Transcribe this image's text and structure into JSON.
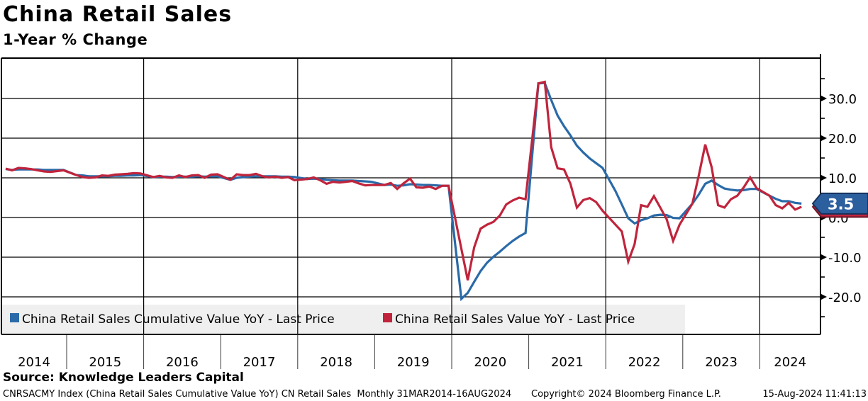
{
  "header": {
    "title": "China Retail Sales",
    "subtitle": "1-Year % Change"
  },
  "footer": {
    "source": "Source: Knowledge Leaders Capital",
    "ticker_line": "CNRSACMY Index (China Retail Sales Cumulative Value YoY) CN Retail Sales  Monthly 31MAR2014-16AUG2024",
    "copyright": "Copyright© 2024 Bloomberg Finance L.P.",
    "timestamp": "15-Aug-2024 11:41:13"
  },
  "legend": {
    "background": "#efefef"
  },
  "chart_data": {
    "type": "line",
    "title": "China Retail Sales",
    "subtitle": "1-Year % Change",
    "ylabel": "1-Year % Change",
    "ylim": [
      -29,
      40
    ],
    "grid": true,
    "legend_position": "bottom-left-inside",
    "x_axis": {
      "years": [
        2014,
        2015,
        2016,
        2017,
        2018,
        2019,
        2020,
        2021,
        2022,
        2023,
        2024
      ],
      "gridline_years": [
        2016,
        2018,
        2020,
        2022,
        2024
      ],
      "range_label": "31MAR2014-16AUG2024",
      "frequency": "Monthly"
    },
    "y_axis": {
      "major_ticks": [
        30,
        20,
        10,
        0,
        -10,
        -20
      ],
      "tick_labels": [
        "30.0",
        "20.0",
        "10.0",
        "0.0",
        "-10.0",
        "-20.0"
      ],
      "minor_ticks": [
        35,
        25,
        15,
        5,
        -5,
        -15,
        -25
      ]
    },
    "series": [
      {
        "name": "China Retail Sales Cumulative Value YoY - Last Price",
        "color": "#2a6aa8",
        "last_value": 3.5,
        "points": [
          [
            2014,
            3,
            12.2
          ],
          [
            2014,
            4,
            12.0
          ],
          [
            2014,
            5,
            12.1
          ],
          [
            2014,
            6,
            12.1
          ],
          [
            2014,
            7,
            12.1
          ],
          [
            2014,
            8,
            12.1
          ],
          [
            2014,
            9,
            12.0
          ],
          [
            2014,
            10,
            12.0
          ],
          [
            2014,
            11,
            12.0
          ],
          [
            2014,
            12,
            12.0
          ],
          [
            2015,
            2,
            10.7
          ],
          [
            2015,
            3,
            10.6
          ],
          [
            2015,
            4,
            10.4
          ],
          [
            2015,
            5,
            10.4
          ],
          [
            2015,
            6,
            10.4
          ],
          [
            2015,
            7,
            10.4
          ],
          [
            2015,
            8,
            10.5
          ],
          [
            2015,
            9,
            10.5
          ],
          [
            2015,
            10,
            10.6
          ],
          [
            2015,
            11,
            10.6
          ],
          [
            2015,
            12,
            10.7
          ],
          [
            2016,
            2,
            10.2
          ],
          [
            2016,
            3,
            10.3
          ],
          [
            2016,
            4,
            10.3
          ],
          [
            2016,
            5,
            10.2
          ],
          [
            2016,
            6,
            10.3
          ],
          [
            2016,
            7,
            10.3
          ],
          [
            2016,
            8,
            10.3
          ],
          [
            2016,
            9,
            10.4
          ],
          [
            2016,
            10,
            10.3
          ],
          [
            2016,
            11,
            10.4
          ],
          [
            2016,
            12,
            10.4
          ],
          [
            2017,
            2,
            9.5
          ],
          [
            2017,
            3,
            10.0
          ],
          [
            2017,
            4,
            10.2
          ],
          [
            2017,
            5,
            10.3
          ],
          [
            2017,
            6,
            10.4
          ],
          [
            2017,
            7,
            10.4
          ],
          [
            2017,
            8,
            10.4
          ],
          [
            2017,
            9,
            10.4
          ],
          [
            2017,
            10,
            10.3
          ],
          [
            2017,
            11,
            10.3
          ],
          [
            2017,
            12,
            10.2
          ],
          [
            2018,
            2,
            9.7
          ],
          [
            2018,
            3,
            9.8
          ],
          [
            2018,
            4,
            9.7
          ],
          [
            2018,
            5,
            9.5
          ],
          [
            2018,
            6,
            9.4
          ],
          [
            2018,
            7,
            9.3
          ],
          [
            2018,
            8,
            9.3
          ],
          [
            2018,
            9,
            9.3
          ],
          [
            2018,
            10,
            9.2
          ],
          [
            2018,
            11,
            9.1
          ],
          [
            2018,
            12,
            9.0
          ],
          [
            2019,
            2,
            8.2
          ],
          [
            2019,
            3,
            8.3
          ],
          [
            2019,
            4,
            8.0
          ],
          [
            2019,
            5,
            8.1
          ],
          [
            2019,
            6,
            8.4
          ],
          [
            2019,
            7,
            8.3
          ],
          [
            2019,
            8,
            8.2
          ],
          [
            2019,
            9,
            8.2
          ],
          [
            2019,
            10,
            8.1
          ],
          [
            2019,
            11,
            8.0
          ],
          [
            2019,
            12,
            8.0
          ],
          [
            2020,
            2,
            -20.5
          ],
          [
            2020,
            3,
            -19.0
          ],
          [
            2020,
            4,
            -16.2
          ],
          [
            2020,
            5,
            -13.5
          ],
          [
            2020,
            6,
            -11.4
          ],
          [
            2020,
            7,
            -9.9
          ],
          [
            2020,
            8,
            -8.6
          ],
          [
            2020,
            9,
            -7.2
          ],
          [
            2020,
            10,
            -5.9
          ],
          [
            2020,
            11,
            -4.8
          ],
          [
            2020,
            12,
            -3.9
          ],
          [
            2021,
            2,
            33.8
          ],
          [
            2021,
            3,
            33.9
          ],
          [
            2021,
            4,
            29.6
          ],
          [
            2021,
            5,
            25.7
          ],
          [
            2021,
            6,
            23.0
          ],
          [
            2021,
            7,
            20.7
          ],
          [
            2021,
            8,
            18.1
          ],
          [
            2021,
            9,
            16.4
          ],
          [
            2021,
            10,
            14.9
          ],
          [
            2021,
            11,
            13.7
          ],
          [
            2021,
            12,
            12.5
          ],
          [
            2022,
            2,
            6.7
          ],
          [
            2022,
            3,
            3.3
          ],
          [
            2022,
            4,
            -0.2
          ],
          [
            2022,
            5,
            -1.5
          ],
          [
            2022,
            6,
            -0.7
          ],
          [
            2022,
            7,
            -0.2
          ],
          [
            2022,
            8,
            0.5
          ],
          [
            2022,
            9,
            0.7
          ],
          [
            2022,
            10,
            0.6
          ],
          [
            2022,
            11,
            -0.1
          ],
          [
            2022,
            12,
            -0.2
          ],
          [
            2023,
            2,
            3.5
          ],
          [
            2023,
            3,
            5.8
          ],
          [
            2023,
            4,
            8.5
          ],
          [
            2023,
            5,
            9.3
          ],
          [
            2023,
            6,
            8.2
          ],
          [
            2023,
            7,
            7.3
          ],
          [
            2023,
            8,
            7.0
          ],
          [
            2023,
            9,
            6.8
          ],
          [
            2023,
            10,
            6.9
          ],
          [
            2023,
            11,
            7.2
          ],
          [
            2023,
            12,
            7.2
          ],
          [
            2024,
            2,
            5.5
          ],
          [
            2024,
            3,
            4.7
          ],
          [
            2024,
            4,
            4.1
          ],
          [
            2024,
            5,
            4.1
          ],
          [
            2024,
            6,
            3.7
          ],
          [
            2024,
            7,
            3.5
          ]
        ]
      },
      {
        "name": "China Retail Sales Value YoY - Last Price",
        "color": "#c0243c",
        "last_value": 2.7,
        "points": [
          [
            2014,
            3,
            12.3
          ],
          [
            2014,
            4,
            11.9
          ],
          [
            2014,
            5,
            12.5
          ],
          [
            2014,
            6,
            12.4
          ],
          [
            2014,
            7,
            12.2
          ],
          [
            2014,
            8,
            11.9
          ],
          [
            2014,
            9,
            11.6
          ],
          [
            2014,
            10,
            11.5
          ],
          [
            2014,
            11,
            11.7
          ],
          [
            2014,
            12,
            11.9
          ],
          [
            2015,
            2,
            10.7
          ],
          [
            2015,
            3,
            10.2
          ],
          [
            2015,
            4,
            10.0
          ],
          [
            2015,
            5,
            10.1
          ],
          [
            2015,
            6,
            10.6
          ],
          [
            2015,
            7,
            10.5
          ],
          [
            2015,
            8,
            10.8
          ],
          [
            2015,
            9,
            10.9
          ],
          [
            2015,
            10,
            11.0
          ],
          [
            2015,
            11,
            11.2
          ],
          [
            2015,
            12,
            11.1
          ],
          [
            2016,
            2,
            10.2
          ],
          [
            2016,
            3,
            10.5
          ],
          [
            2016,
            4,
            10.1
          ],
          [
            2016,
            5,
            10.0
          ],
          [
            2016,
            6,
            10.6
          ],
          [
            2016,
            7,
            10.2
          ],
          [
            2016,
            8,
            10.6
          ],
          [
            2016,
            9,
            10.7
          ],
          [
            2016,
            10,
            10.0
          ],
          [
            2016,
            11,
            10.8
          ],
          [
            2016,
            12,
            10.9
          ],
          [
            2017,
            2,
            9.5
          ],
          [
            2017,
            3,
            10.9
          ],
          [
            2017,
            4,
            10.7
          ],
          [
            2017,
            5,
            10.7
          ],
          [
            2017,
            6,
            11.0
          ],
          [
            2017,
            7,
            10.4
          ],
          [
            2017,
            8,
            10.1
          ],
          [
            2017,
            9,
            10.3
          ],
          [
            2017,
            10,
            10.0
          ],
          [
            2017,
            11,
            10.2
          ],
          [
            2017,
            12,
            9.4
          ],
          [
            2018,
            2,
            9.7
          ],
          [
            2018,
            3,
            10.1
          ],
          [
            2018,
            4,
            9.4
          ],
          [
            2018,
            5,
            8.5
          ],
          [
            2018,
            6,
            9.0
          ],
          [
            2018,
            7,
            8.8
          ],
          [
            2018,
            8,
            9.0
          ],
          [
            2018,
            9,
            9.2
          ],
          [
            2018,
            10,
            8.6
          ],
          [
            2018,
            11,
            8.1
          ],
          [
            2018,
            12,
            8.2
          ],
          [
            2019,
            2,
            8.2
          ],
          [
            2019,
            3,
            8.7
          ],
          [
            2019,
            4,
            7.2
          ],
          [
            2019,
            5,
            8.6
          ],
          [
            2019,
            6,
            9.8
          ],
          [
            2019,
            7,
            7.6
          ],
          [
            2019,
            8,
            7.5
          ],
          [
            2019,
            9,
            7.8
          ],
          [
            2019,
            10,
            7.2
          ],
          [
            2019,
            11,
            8.0
          ],
          [
            2019,
            12,
            8.0
          ],
          [
            2020,
            3,
            -15.8
          ],
          [
            2020,
            4,
            -7.5
          ],
          [
            2020,
            5,
            -2.8
          ],
          [
            2020,
            6,
            -1.8
          ],
          [
            2020,
            7,
            -1.1
          ],
          [
            2020,
            8,
            0.5
          ],
          [
            2020,
            9,
            3.3
          ],
          [
            2020,
            10,
            4.3
          ],
          [
            2020,
            11,
            5.0
          ],
          [
            2020,
            12,
            4.6
          ],
          [
            2021,
            2,
            33.8
          ],
          [
            2021,
            3,
            34.2
          ],
          [
            2021,
            4,
            17.7
          ],
          [
            2021,
            5,
            12.4
          ],
          [
            2021,
            6,
            12.1
          ],
          [
            2021,
            7,
            8.5
          ],
          [
            2021,
            8,
            2.5
          ],
          [
            2021,
            9,
            4.4
          ],
          [
            2021,
            10,
            4.9
          ],
          [
            2021,
            11,
            3.9
          ],
          [
            2021,
            12,
            1.7
          ],
          [
            2022,
            3,
            -3.5
          ],
          [
            2022,
            4,
            -11.1
          ],
          [
            2022,
            5,
            -6.7
          ],
          [
            2022,
            6,
            3.1
          ],
          [
            2022,
            7,
            2.7
          ],
          [
            2022,
            8,
            5.4
          ],
          [
            2022,
            9,
            2.5
          ],
          [
            2022,
            10,
            -0.5
          ],
          [
            2022,
            11,
            -5.9
          ],
          [
            2022,
            12,
            -1.8
          ],
          [
            2023,
            2,
            3.5
          ],
          [
            2023,
            3,
            10.6
          ],
          [
            2023,
            4,
            18.4
          ],
          [
            2023,
            5,
            12.7
          ],
          [
            2023,
            6,
            3.1
          ],
          [
            2023,
            7,
            2.5
          ],
          [
            2023,
            8,
            4.6
          ],
          [
            2023,
            9,
            5.5
          ],
          [
            2023,
            10,
            7.6
          ],
          [
            2023,
            11,
            10.1
          ],
          [
            2023,
            12,
            7.4
          ],
          [
            2024,
            2,
            5.5
          ],
          [
            2024,
            3,
            3.1
          ],
          [
            2024,
            4,
            2.3
          ],
          [
            2024,
            5,
            3.7
          ],
          [
            2024,
            6,
            2.0
          ],
          [
            2024,
            7,
            2.7
          ]
        ]
      }
    ],
    "badges": {
      "blue_label": "3.5",
      "blue_value": 3.5,
      "blue_fill": "#2c5f9e",
      "blue_border": "#16325c",
      "red_value": 2.7,
      "red_fill": "#c0243c",
      "red_border": "#701427"
    }
  }
}
